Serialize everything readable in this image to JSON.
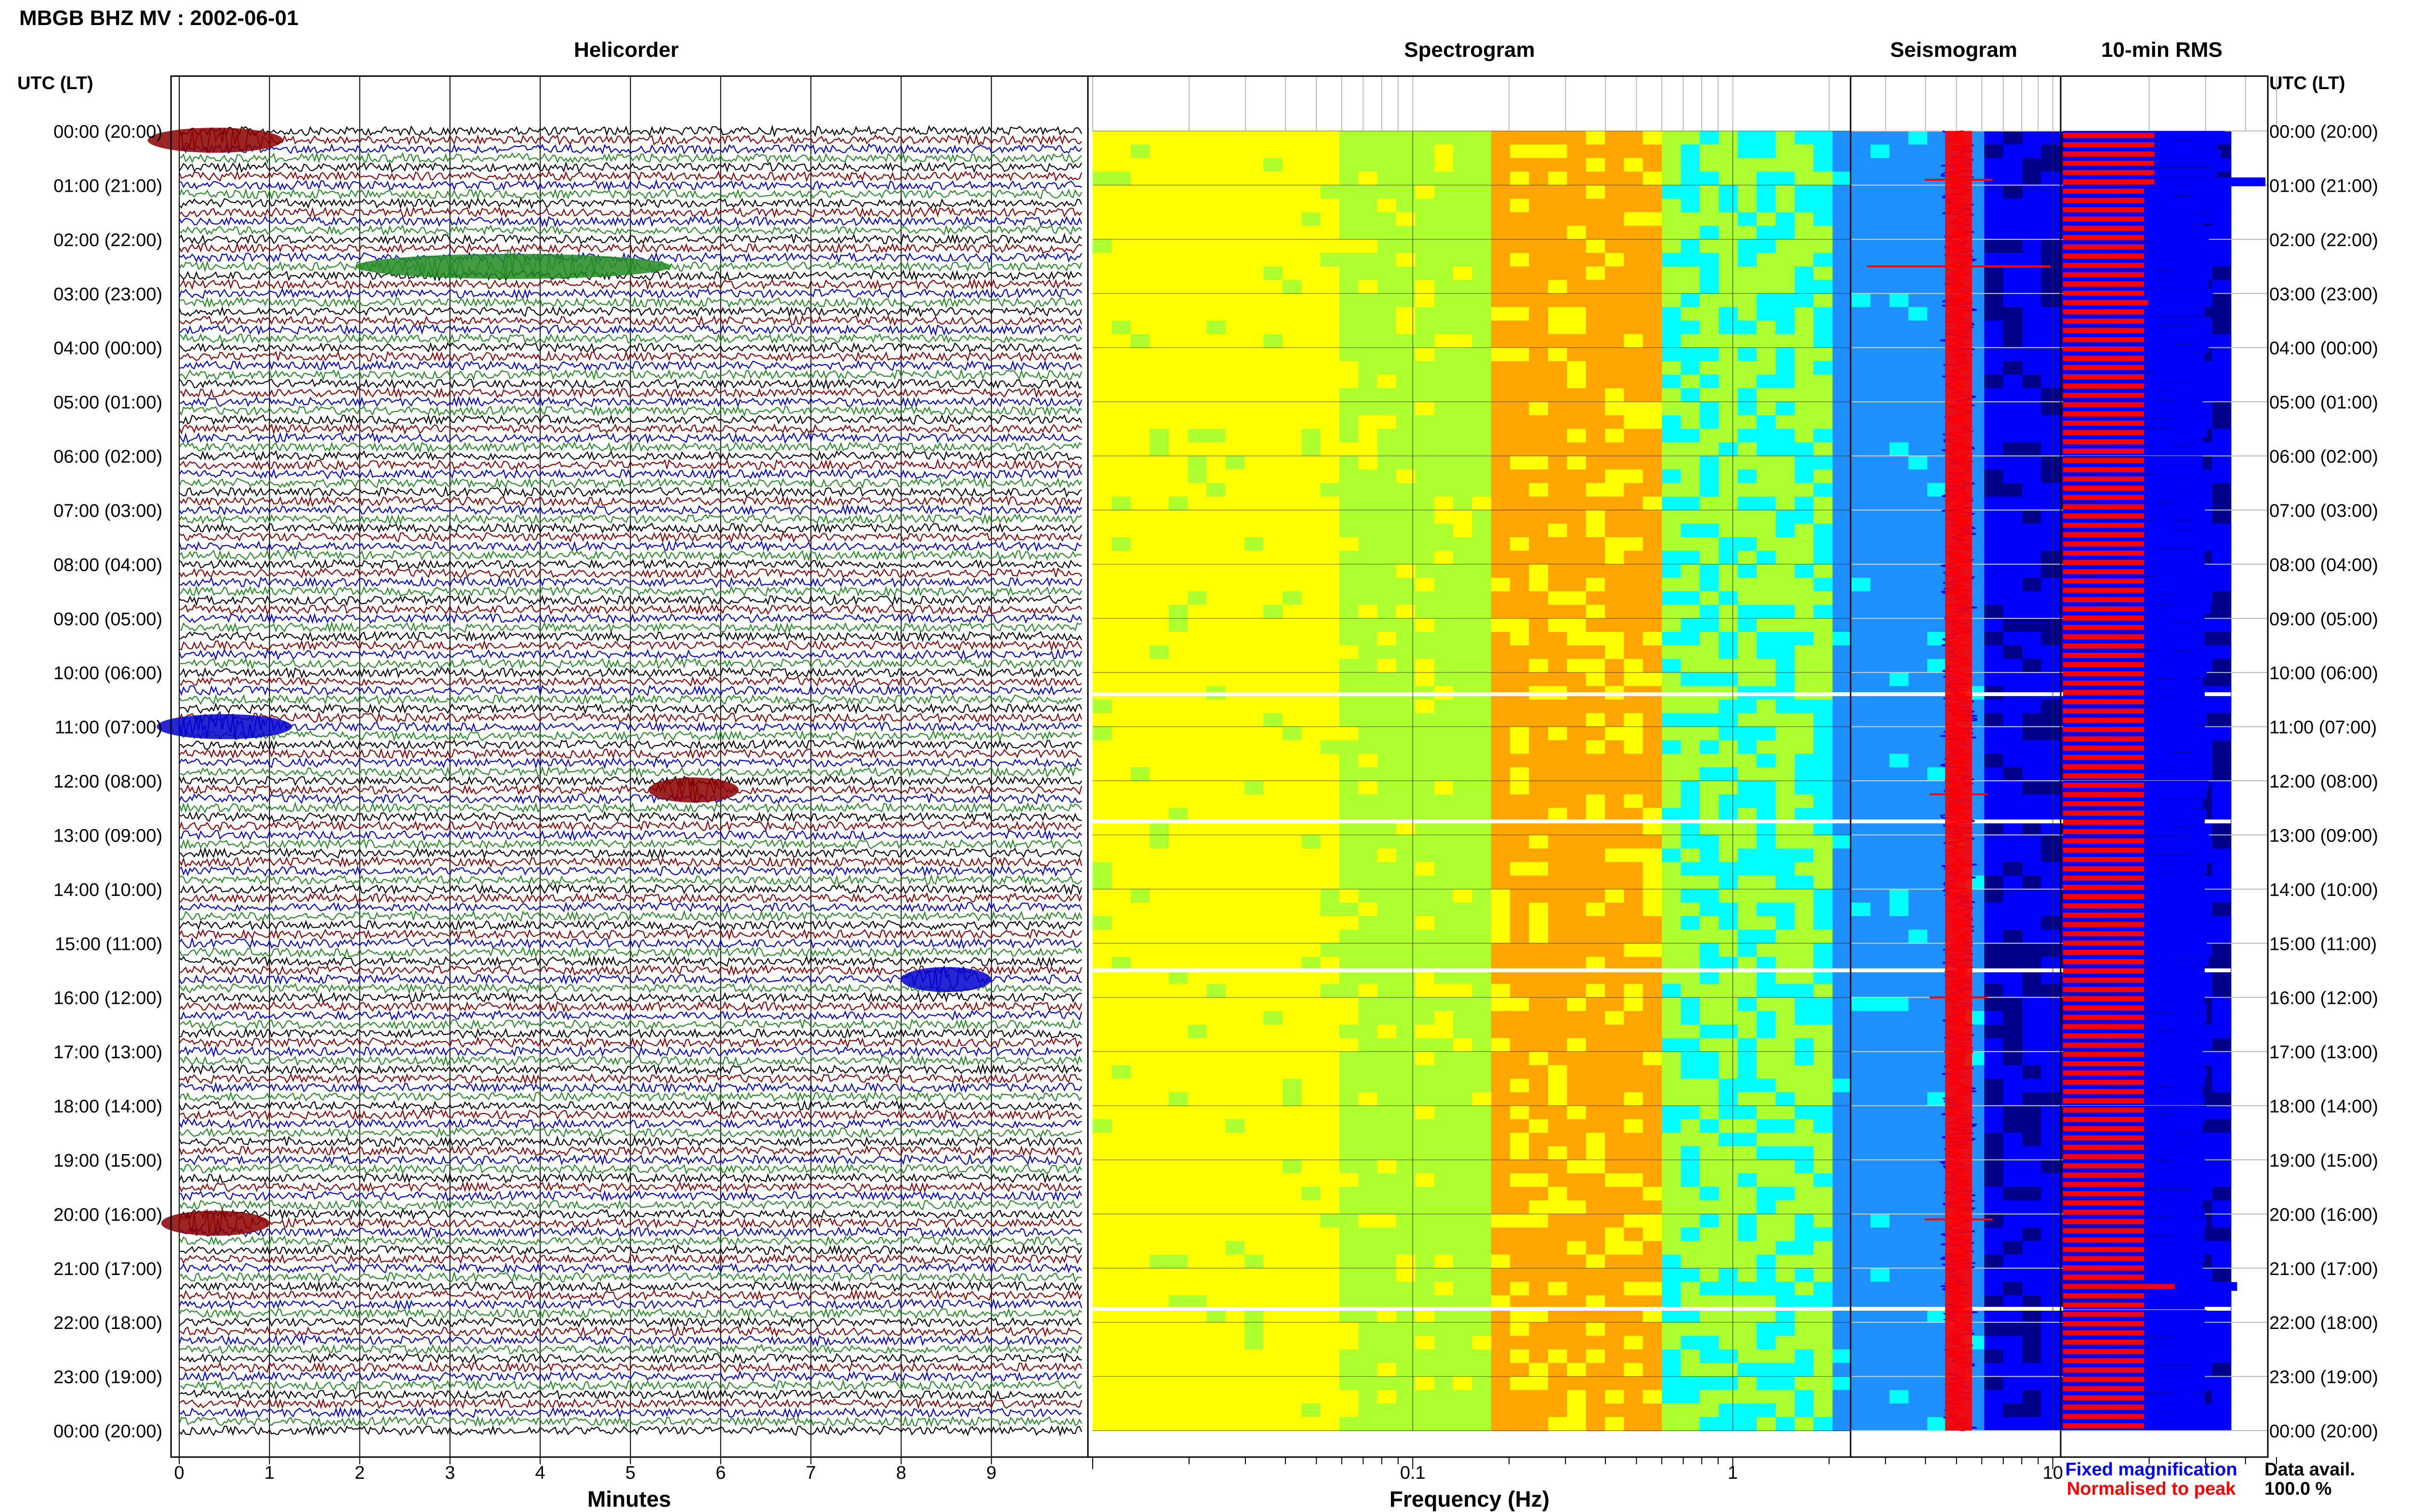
{
  "header": {
    "title": "MBGB BHZ MV : 2002-06-01"
  },
  "panels": {
    "helicorder": "Helicorder",
    "spectrogram": "Spectrogram",
    "seismogram": "Seismogram",
    "rms": "10-min RMS"
  },
  "axes": {
    "time_label_left": "UTC (LT)",
    "time_label_right": "UTC (LT)",
    "minutes_label": "Minutes",
    "frequency_label": "Frequency (Hz)"
  },
  "time_ticks": [
    "00:00 (20:00)",
    "01:00 (21:00)",
    "02:00 (22:00)",
    "03:00 (23:00)",
    "04:00 (00:00)",
    "05:00 (01:00)",
    "06:00 (02:00)",
    "07:00 (03:00)",
    "08:00 (04:00)",
    "09:00 (05:00)",
    "10:00 (06:00)",
    "11:00 (07:00)",
    "12:00 (08:00)",
    "13:00 (09:00)",
    "14:00 (10:00)",
    "15:00 (11:00)",
    "16:00 (12:00)",
    "17:00 (13:00)",
    "18:00 (14:00)",
    "19:00 (15:00)",
    "20:00 (16:00)",
    "21:00 (17:00)",
    "22:00 (18:00)",
    "23:00 (19:00)",
    "00:00 (20:00)"
  ],
  "legend": {
    "fixed": "Fixed magnification",
    "normalised": "Normalised to peak",
    "fixed_color": "#0000ff",
    "normalised_color": "#ff0000"
  },
  "data_availability": {
    "label": "Data avail.",
    "value": "100.0 %"
  },
  "chart_data": [
    {
      "type": "line",
      "title": "Helicorder",
      "xlabel": "Minutes",
      "xlim": [
        0,
        10
      ],
      "x_ticks": [
        0,
        1,
        2,
        3,
        4,
        5,
        6,
        7,
        8,
        9
      ],
      "trace_colors": [
        "#000000",
        "#8b0000",
        "#0000cd",
        "#228b22"
      ],
      "traces_per_hour": 6,
      "events": [
        {
          "hour": 0.17,
          "minute": 0.4,
          "duration": 1.5,
          "color": "#8b0000"
        },
        {
          "hour": 2.5,
          "minute": 3.7,
          "duration": 3.5,
          "color": "#228b22"
        },
        {
          "hour": 11.0,
          "minute": 0.5,
          "duration": 1.5,
          "color": "#0000cd"
        },
        {
          "hour": 12.17,
          "minute": 5.7,
          "duration": 1.0,
          "color": "#8b0000"
        },
        {
          "hour": 15.67,
          "minute": 8.5,
          "duration": 1.0,
          "color": "#0000cd"
        },
        {
          "hour": 20.17,
          "minute": 0.4,
          "duration": 1.2,
          "color": "#8b0000"
        }
      ]
    },
    {
      "type": "heatmap",
      "title": "Spectrogram",
      "xlabel": "Frequency (Hz)",
      "x_scale": "log",
      "xlim": [
        0.01,
        50
      ],
      "x_tick_labels": [
        "0.1",
        "1",
        "10"
      ],
      "colormap": [
        "#00008b",
        "#0000ff",
        "#1e90ff",
        "#00ffff",
        "#adff2f",
        "#ffff00",
        "#ffa500",
        "#ff0000"
      ],
      "gaps_utc_hours": [
        10.4,
        12.75,
        15.5,
        21.75
      ]
    },
    {
      "type": "line",
      "title": "Seismogram",
      "series": [
        {
          "name": "Normalised to peak",
          "color": "#ff0000"
        },
        {
          "name": "Fixed magnification",
          "color": "#0000ff"
        }
      ]
    },
    {
      "type": "bar",
      "title": "10-min RMS",
      "series": [
        {
          "name": "Fixed magnification",
          "color": "#0000ff",
          "values": [
            0.8,
            0.76,
            0.78,
            0.8,
            0.76,
            1.0,
            0.74,
            0.77,
            0.75,
            0.74,
            0.7,
            0.72,
            0.73,
            0.75,
            0.72,
            0.7,
            0.72,
            0.74,
            0.71,
            0.7,
            0.73,
            0.69,
            0.7,
            0.72,
            0.7,
            0.7,
            0.71,
            0.69,
            0.72,
            0.69,
            0.72,
            0.7,
            0.71,
            0.69,
            0.7,
            0.69,
            0.69,
            0.71,
            0.73,
            0.69,
            0.7,
            0.69,
            0.71,
            0.69,
            0.72,
            0.7,
            0.7,
            0.69,
            0.7,
            0.72,
            0.71,
            0.73,
            0.7,
            0.71,
            0.7,
            0.7,
            0.73,
            0.72,
            0.71,
            0.69,
            0.7,
            0.72,
            0.71,
            0.71,
            0.7,
            0.71,
            0.72,
            0.69,
            0.7,
            0.7,
            0.72,
            0.71,
            0.69,
            0.71,
            0.7,
            0.72,
            0.69,
            0.7,
            0.72,
            0.71,
            0.7,
            0.7,
            0.71,
            0.69,
            0.69,
            0.7,
            0.71,
            0.71,
            0.7,
            0.72,
            0.7,
            0.71,
            0.69,
            0.7,
            0.71,
            0.71,
            0.7,
            0.69,
            0.7,
            0.69,
            0.7,
            0.71,
            0.7,
            0.69,
            0.7,
            0.71,
            0.7,
            0.69,
            0.71,
            0.7,
            0.7,
            0.69,
            0.71,
            0.7,
            0.7,
            0.69,
            0.7,
            0.71,
            0.7,
            0.7,
            0.71,
            0.7,
            0.69,
            0.7,
            0.86,
            0.72,
            0.7,
            0.71,
            0.7,
            0.69,
            0.7,
            0.71,
            0.7,
            0.69,
            0.7,
            0.71,
            0.7,
            0.7,
            0.69,
            0.7
          ]
        },
        {
          "name": "Normalised to peak",
          "color": "#ff0000",
          "values": [
            0.45,
            0.45,
            0.45,
            0.45,
            0.45,
            0.45,
            0.4,
            0.4,
            0.4,
            0.4,
            0.4,
            0.4,
            0.4,
            0.4,
            0.4,
            0.4,
            0.4,
            0.4,
            0.42,
            0.4,
            0.4,
            0.4,
            0.4,
            0.4,
            0.4,
            0.4,
            0.4,
            0.4,
            0.4,
            0.4,
            0.4,
            0.4,
            0.4,
            0.4,
            0.4,
            0.4,
            0.4,
            0.4,
            0.4,
            0.4,
            0.4,
            0.4,
            0.4,
            0.4,
            0.4,
            0.4,
            0.4,
            0.4,
            0.4,
            0.4,
            0.4,
            0.4,
            0.4,
            0.4,
            0.4,
            0.4,
            0.4,
            0.4,
            0.4,
            0.4,
            0.4,
            0.4,
            0.4,
            0.4,
            0.4,
            0.4,
            0.4,
            0.4,
            0.4,
            0.4,
            0.4,
            0.4,
            0.4,
            0.4,
            0.4,
            0.4,
            0.4,
            0.4,
            0.4,
            0.4,
            0.4,
            0.4,
            0.4,
            0.4,
            0.4,
            0.4,
            0.4,
            0.4,
            0.4,
            0.4,
            0.4,
            0.4,
            0.4,
            0.4,
            0.4,
            0.4,
            0.4,
            0.4,
            0.4,
            0.4,
            0.4,
            0.4,
            0.4,
            0.4,
            0.4,
            0.4,
            0.4,
            0.4,
            0.4,
            0.4,
            0.4,
            0.4,
            0.4,
            0.4,
            0.4,
            0.4,
            0.4,
            0.4,
            0.4,
            0.4,
            0.4,
            0.4,
            0.4,
            0.4,
            0.55,
            0.4,
            0.4,
            0.4,
            0.4,
            0.4,
            0.4,
            0.4,
            0.4,
            0.4,
            0.4,
            0.4,
            0.4,
            0.4,
            0.4,
            0.4
          ]
        }
      ]
    }
  ]
}
